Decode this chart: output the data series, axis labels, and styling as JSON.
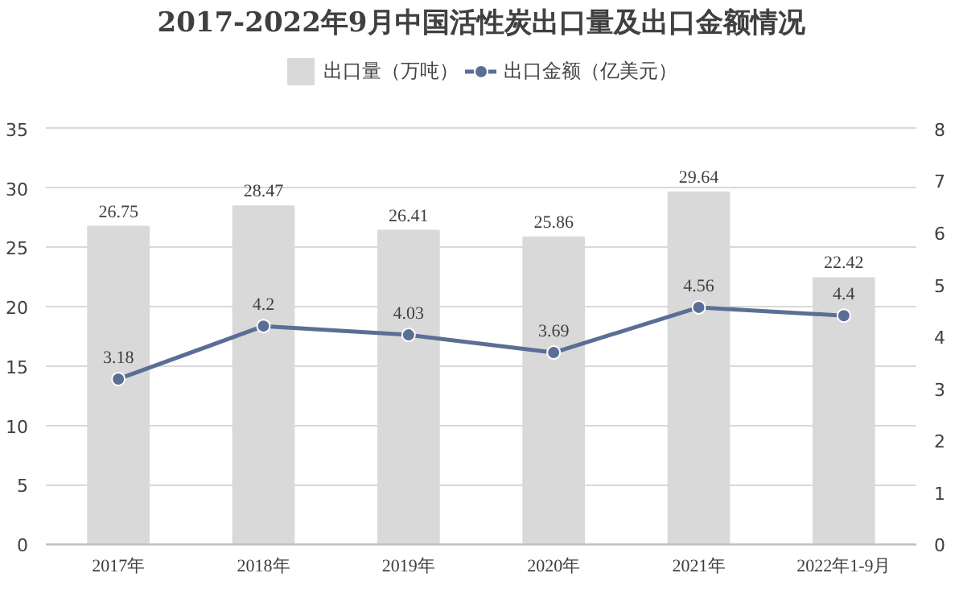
{
  "chart_data": {
    "type": "bar",
    "title": "2017-2022年9月中国活性炭出口量及出口金额情况",
    "categories": [
      "2017年",
      "2018年",
      "2019年",
      "2020年",
      "2021年",
      "2022年1-9月"
    ],
    "series": [
      {
        "name": "出口量（万吨）",
        "color": "#d9d9d9",
        "values": [
          26.75,
          28.47,
          26.41,
          25.86,
          29.64,
          22.42
        ]
      },
      {
        "name": "出口金额（亿美元）",
        "type": "line",
        "axis": "y2",
        "color": "#5b6e96",
        "values": [
          3.18,
          4.2,
          4.03,
          3.69,
          4.56,
          4.4
        ]
      }
    ],
    "ylim": [
      0,
      35
    ],
    "yticks": [
      0,
      5,
      10,
      15,
      20,
      25,
      30,
      35
    ],
    "y2lim": [
      0,
      8
    ],
    "y2ticks": [
      0,
      1,
      2,
      3,
      4,
      5,
      6,
      7,
      8
    ],
    "grid": "y",
    "legend": "top",
    "marker": "circle",
    "line_style": "solid",
    "data_labels": true
  }
}
